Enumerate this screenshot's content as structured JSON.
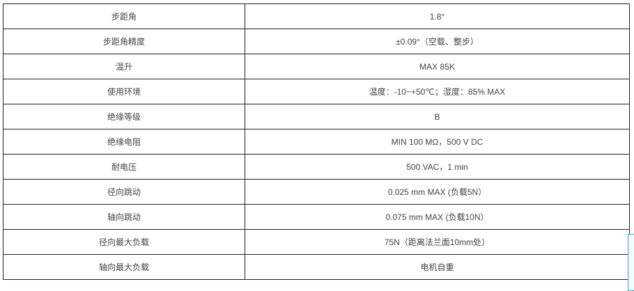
{
  "spec_table": {
    "rows": [
      {
        "label": "步距角",
        "value": "1.8°"
      },
      {
        "label": "步距角精度",
        "value": "±0.09°（空载、整步）"
      },
      {
        "label": "温升",
        "value": "MAX 85K"
      },
      {
        "label": "使用环境",
        "value": "温度：-10~+50℃；湿度：85% MAX"
      },
      {
        "label": "绝缘等级",
        "value": "B"
      },
      {
        "label": "绝缘电阻",
        "value": "MIN 100 MΩ，500 V DC"
      },
      {
        "label": "耐电压",
        "value": "500 VAC，1 min"
      },
      {
        "label": "径向跳动",
        "value": "0.025 mm MAX (负载5N）"
      },
      {
        "label": "轴向跳动",
        "value": "0.075 mm MAX (负载10N）"
      },
      {
        "label": "径向最大负载",
        "value": "75N（距离法兰面10mm处）"
      },
      {
        "label": "轴向最大负载",
        "value": "电机自重"
      }
    ]
  }
}
